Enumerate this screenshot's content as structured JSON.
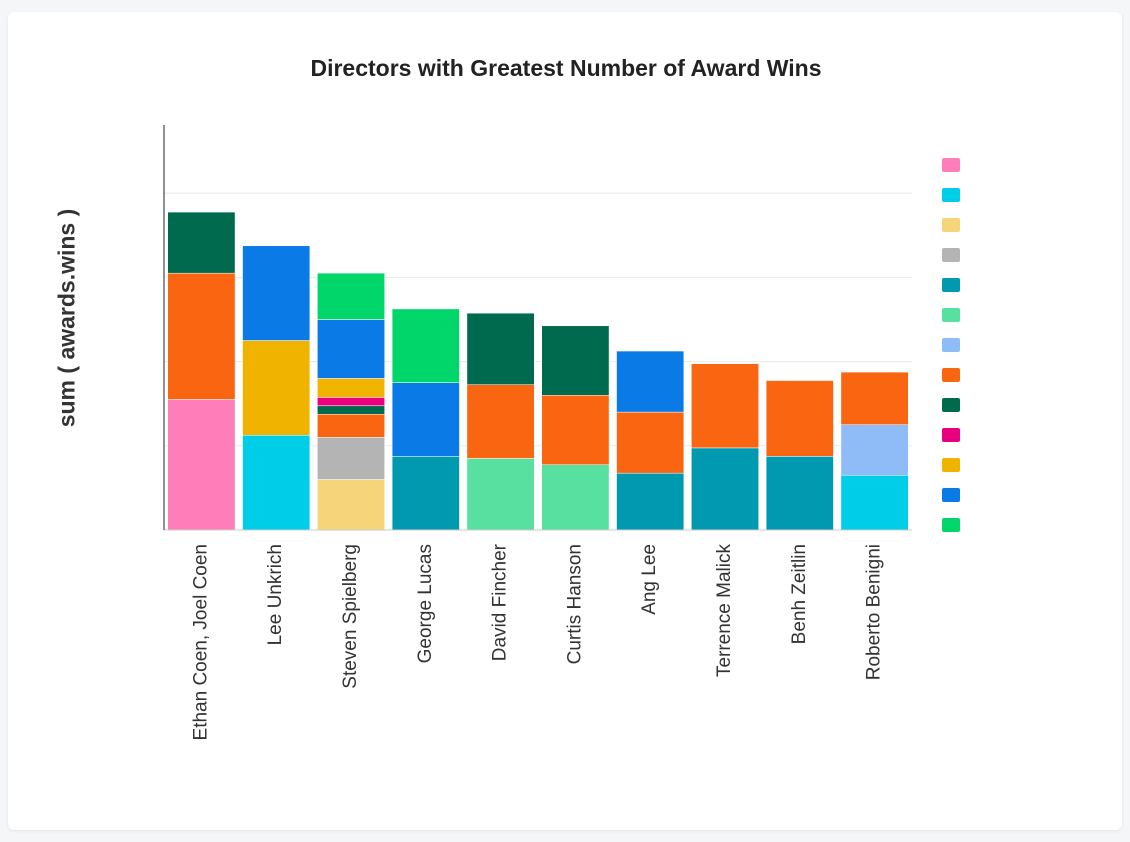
{
  "chart_data": {
    "type": "bar",
    "stacked": true,
    "title": "Directors with Greatest Number of Award Wins",
    "ylabel": "sum ( awards.wins )",
    "xlabel": "",
    "ylim": [
      0,
      9.5
    ],
    "grid": true,
    "legend_position": "right",
    "categories": [
      "Ethan Coen, Joel Coen",
      "Lee Unkrich",
      "Steven Spielberg",
      "George Lucas",
      "David Fincher",
      "Curtis Hanson",
      "Ang Lee",
      "Terrence Malick",
      "Benh Zeitlin",
      "Roberto Benigni"
    ],
    "series": [
      {
        "color": "#ff7eb9",
        "values": [
          3.1,
          0,
          0,
          0,
          0,
          0,
          0,
          0,
          0,
          0
        ]
      },
      {
        "color": "#00cde8",
        "values": [
          0,
          2.25,
          0,
          0,
          0,
          0,
          0,
          0,
          0,
          1.3
        ]
      },
      {
        "color": "#f6d57a",
        "values": [
          0,
          0,
          1.2,
          0,
          0,
          0,
          0,
          0,
          0,
          0
        ]
      },
      {
        "color": "#b4b4b4",
        "values": [
          0,
          0,
          1.0,
          0,
          0,
          0,
          0,
          0,
          0,
          0
        ]
      },
      {
        "color": "#0099b0",
        "values": [
          0,
          0,
          0,
          1.75,
          0,
          0,
          1.35,
          1.95,
          1.75,
          0
        ]
      },
      {
        "color": "#58e0a0",
        "values": [
          0,
          0,
          0,
          0,
          1.7,
          1.55,
          0,
          0,
          0,
          0
        ]
      },
      {
        "color": "#8fbcf7",
        "values": [
          0,
          0,
          0,
          0,
          0,
          0,
          0,
          0,
          0,
          1.2
        ]
      },
      {
        "color": "#f96510",
        "values": [
          3.0,
          0,
          0.55,
          0,
          1.75,
          1.65,
          1.45,
          2.0,
          1.8,
          1.25
        ]
      },
      {
        "color": "#006a4e",
        "values": [
          1.45,
          0,
          0.2,
          0,
          1.7,
          1.65,
          0,
          0,
          0,
          0
        ]
      },
      {
        "color": "#e8007e",
        "values": [
          0,
          0,
          0.2,
          0,
          0,
          0,
          0,
          0,
          0,
          0
        ]
      },
      {
        "color": "#f0b400",
        "values": [
          0,
          2.25,
          0.45,
          0,
          0,
          0,
          0,
          0,
          0,
          0
        ]
      },
      {
        "color": "#0a7be6",
        "values": [
          0,
          2.25,
          1.4,
          1.75,
          0,
          0,
          1.45,
          0,
          0,
          0
        ]
      },
      {
        "color": "#00d66a",
        "values": [
          0,
          0,
          1.1,
          1.75,
          0,
          0,
          0,
          0,
          0,
          0
        ]
      }
    ]
  }
}
